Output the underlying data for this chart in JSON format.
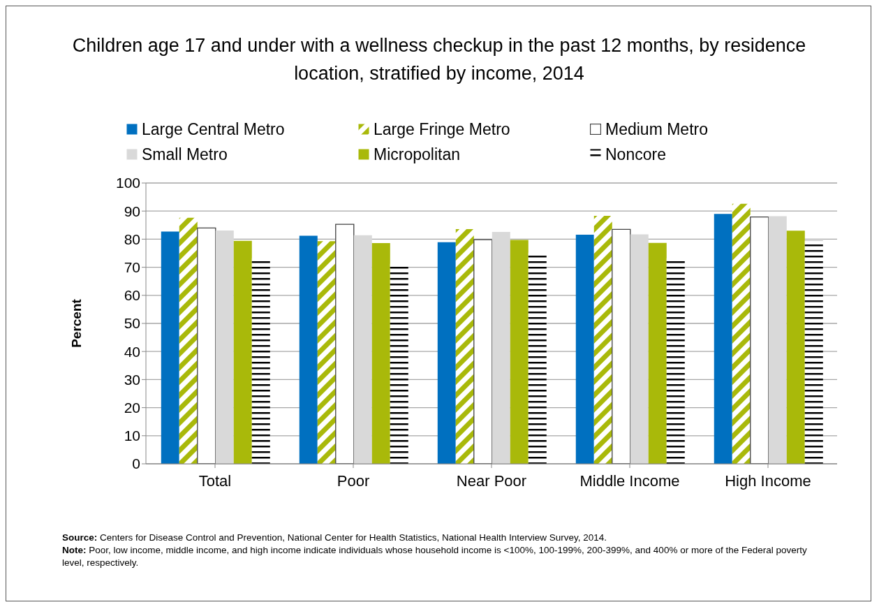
{
  "chart_data": {
    "type": "bar",
    "title": "Children age 17 and under with a wellness checkup in the past 12 months, by residence location, stratified by income, 2014",
    "ylabel": "Percent",
    "categories": [
      "Total",
      "Poor",
      "Near Poor",
      "Middle Income",
      "High Income"
    ],
    "series": [
      {
        "name": "Large Central Metro",
        "color": "#0070c0",
        "values": [
          82.7,
          81.2,
          78.9,
          81.6,
          89.0
        ]
      },
      {
        "name": "Large Fringe Metro",
        "color": "#a9b90a",
        "values": [
          87.6,
          79.3,
          83.6,
          88.3,
          92.6
        ]
      },
      {
        "name": "Medium Metro",
        "color": "#ffffff",
        "values": [
          84.0,
          85.3,
          79.8,
          83.5,
          87.9
        ]
      },
      {
        "name": "Small Metro",
        "color": "#d9d9d9",
        "values": [
          83.1,
          81.4,
          82.6,
          81.7,
          88.2
        ]
      },
      {
        "name": "Micropolitan",
        "color": "#a9b90a",
        "values": [
          79.4,
          78.6,
          79.7,
          78.7,
          83.0
        ]
      },
      {
        "name": "Noncore",
        "color": "#000000",
        "values": [
          73.2,
          71.2,
          75.2,
          73.2,
          79.5
        ]
      }
    ],
    "ylim": [
      0,
      100
    ],
    "yticks": [
      0,
      10,
      20,
      30,
      40,
      50,
      60,
      70,
      80,
      90,
      100
    ],
    "grid": "y",
    "legend": "top",
    "annotations": [
      "Source: Centers for Disease Control and Prevention, National Center for Health Statistics, National Health Interview Survey, 2014.",
      "Note: Poor, low income, middle income, and high income indicate individuals whose household income is <100%, 100-199%, 200-399%, and 400% or more of the Federal poverty level, respectively."
    ]
  }
}
